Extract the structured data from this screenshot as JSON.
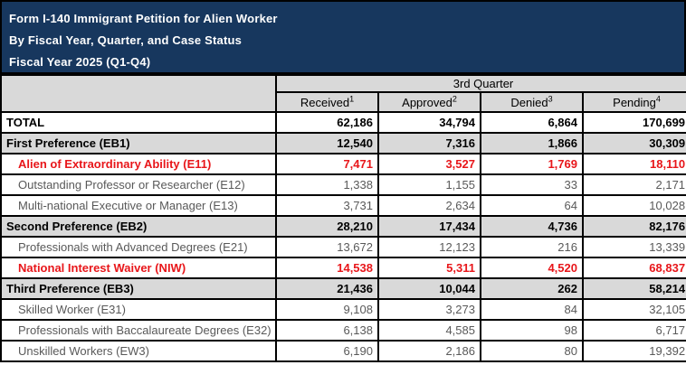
{
  "colors": {
    "banner_background": "#17375E",
    "banner_text": "#FFFFFF",
    "header_cell_background": "#D9D9D9",
    "category_row_background": "#D9D9D9",
    "highlight_text": "#E8161A",
    "subrow_text": "#595959",
    "grid_border": "#000000"
  },
  "title": {
    "line1": "Form I-140 Immigrant Petition for Alien Worker",
    "line2": "By Fiscal Year, Quarter, and Case Status",
    "line3": "Fiscal Year 2025 (Q1-Q4)"
  },
  "table": {
    "quarter_header": "3rd Quarter",
    "columns": [
      {
        "label": "Received",
        "superscript": "1"
      },
      {
        "label": "Approved",
        "superscript": "2"
      },
      {
        "label": "Denied",
        "superscript": "3"
      },
      {
        "label": "Pending",
        "superscript": "4"
      }
    ],
    "rows": [
      {
        "style": "total",
        "label": "TOTAL",
        "received": "62,186",
        "approved": "34,794",
        "denied": "6,864",
        "pending": "170,699"
      },
      {
        "style": "category",
        "label": "First Preference (EB1)",
        "received": "12,540",
        "approved": "7,316",
        "denied": "1,866",
        "pending": "30,309"
      },
      {
        "style": "highlight",
        "label": "Alien of Extraordinary Ability (E11)",
        "received": "7,471",
        "approved": "3,527",
        "denied": "1,769",
        "pending": "18,110"
      },
      {
        "style": "sub",
        "label": "Outstanding Professor or Researcher (E12)",
        "received": "1,338",
        "approved": "1,155",
        "denied": "33",
        "pending": "2,171"
      },
      {
        "style": "sub",
        "label": "Multi-national Executive or Manager (E13)",
        "received": "3,731",
        "approved": "2,634",
        "denied": "64",
        "pending": "10,028"
      },
      {
        "style": "category",
        "label": "Second Preference (EB2)",
        "received": "28,210",
        "approved": "17,434",
        "denied": "4,736",
        "pending": "82,176"
      },
      {
        "style": "sub",
        "label": "Professionals with Advanced Degrees (E21)",
        "received": "13,672",
        "approved": "12,123",
        "denied": "216",
        "pending": "13,339"
      },
      {
        "style": "highlight",
        "label": "National Interest Waiver (NIW)",
        "received": "14,538",
        "approved": "5,311",
        "denied": "4,520",
        "pending": "68,837"
      },
      {
        "style": "category",
        "label": "Third Preference (EB3)",
        "received": "21,436",
        "approved": "10,044",
        "denied": "262",
        "pending": "58,214"
      },
      {
        "style": "sub",
        "label": "Skilled Worker (E31)",
        "received": "9,108",
        "approved": "3,273",
        "denied": "84",
        "pending": "32,105"
      },
      {
        "style": "sub",
        "label": "Professionals with Baccalaureate Degrees (E32)",
        "received": "6,138",
        "approved": "4,585",
        "denied": "98",
        "pending": "6,717"
      },
      {
        "style": "sub",
        "label": "Unskilled Workers (EW3)",
        "received": "6,190",
        "approved": "2,186",
        "denied": "80",
        "pending": "19,392"
      }
    ]
  }
}
